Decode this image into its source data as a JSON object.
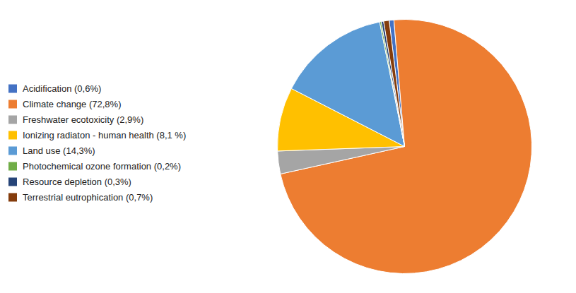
{
  "chart_data": {
    "type": "pie",
    "categories": [
      "Acidification (0,6%)",
      "Climate change (72,8%)",
      "Freshwater ecotoxicity (2,9%)",
      "Ionizing radiaton - human health (8,1 %)",
      "Land use (14,3%)",
      "Photochemical ozone formation (0,2%)",
      "Resource depletion  (0,3%)",
      "Terrestrial eutrophication (0,7%)"
    ],
    "values": [
      0.6,
      72.8,
      2.9,
      8.1,
      14.3,
      0.2,
      0.3,
      0.7
    ],
    "colors": [
      "#4472C4",
      "#ED7D31",
      "#A5A5A5",
      "#FFC000",
      "#5B9BD5",
      "#70AD47",
      "#264478",
      "#843C0C"
    ],
    "legend": "left"
  }
}
